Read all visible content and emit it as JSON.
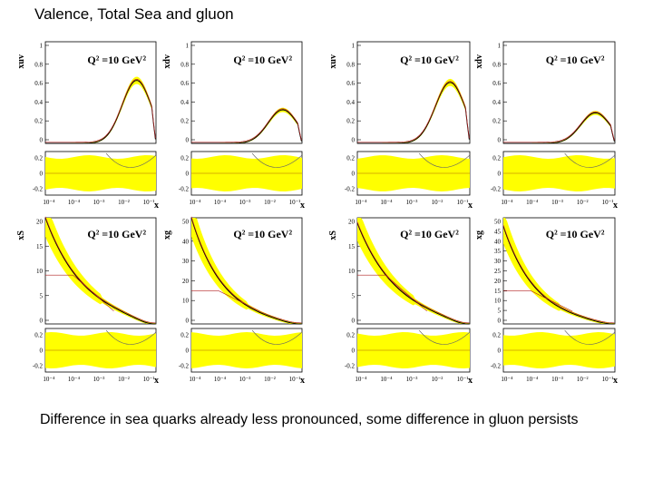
{
  "title": "Valence, Total Sea and gluon",
  "caption": "Difference in sea quarks already less pronounced,  some difference in gluon persists",
  "colors": {
    "band": "#ffff00",
    "central": "#000000",
    "alt": "#b22222",
    "ratio_ref": "#cc9900"
  },
  "chart_data": [
    {
      "type": "line",
      "ylabel": "xuv",
      "annotation": "Q² =10 GeV²",
      "xlabel": "x",
      "y_ticks": [
        "1",
        "0.8",
        "0.6",
        "0.4",
        "0.2",
        "0"
      ],
      "ratio_ticks": [
        "0.2",
        "0",
        "-0.2"
      ],
      "x_ticks": [
        "10⁻⁴",
        "10⁻⁴",
        "10⁻³",
        "10⁻²",
        "10⁻¹"
      ],
      "ylim": [
        0,
        1
      ],
      "peak": {
        "x": 0.2,
        "y": 0.62
      }
    },
    {
      "type": "line",
      "ylabel": "xdv",
      "annotation": "Q² =10 GeV²",
      "xlabel": "x",
      "y_ticks": [
        "1",
        "0.8",
        "0.6",
        "0.4",
        "0.2",
        "0"
      ],
      "ratio_ticks": [
        "0.2",
        "0",
        "-0.2"
      ],
      "x_ticks": [
        "10⁻⁴",
        "10⁻⁴",
        "10⁻³",
        "10⁻²",
        "10⁻¹"
      ],
      "ylim": [
        0,
        1
      ],
      "peak": {
        "x": 0.2,
        "y": 0.33
      }
    },
    {
      "type": "line",
      "ylabel": "xuv",
      "annotation": "Q² =10 GeV²",
      "xlabel": "x",
      "y_ticks": [
        "1",
        "0.8",
        "0.6",
        "0.4",
        "0.2",
        "0"
      ],
      "ratio_ticks": [
        "0.2",
        "0",
        "-0.2"
      ],
      "x_ticks": [
        "10⁻⁴",
        "10⁻⁴",
        "10⁻³",
        "10⁻²",
        "10⁻¹"
      ],
      "ylim": [
        0,
        1
      ],
      "peak": {
        "x": 0.2,
        "y": 0.6
      }
    },
    {
      "type": "line",
      "ylabel": "xdv",
      "annotation": "Q² =10 GeV²",
      "xlabel": "x",
      "y_ticks": [
        "1",
        "0.8",
        "0.6",
        "0.4",
        "0.2",
        "0"
      ],
      "ratio_ticks": [
        "0.2",
        "0",
        "-0.2"
      ],
      "x_ticks": [
        "10⁻⁴",
        "10⁻⁴",
        "10⁻³",
        "10⁻²",
        "10⁻¹"
      ],
      "ylim": [
        0,
        1
      ],
      "peak": {
        "x": 0.2,
        "y": 0.3
      }
    },
    {
      "type": "line",
      "ylabel": "xS",
      "annotation": "Q² =10 GeV²",
      "xlabel": "x",
      "y_ticks": [
        "20",
        "15",
        "10",
        "5",
        "0"
      ],
      "ratio_ticks": [
        "0.2",
        "0",
        "-0.2"
      ],
      "x_ticks": [
        "10⁻⁴",
        "10⁻⁴",
        "10⁻³",
        "10⁻²",
        "10⁻¹"
      ],
      "ylim": [
        0,
        20
      ],
      "start": {
        "x": 0.0001,
        "y": 20
      }
    },
    {
      "type": "line",
      "ylabel": "xg",
      "annotation": "Q² =10 GeV²",
      "xlabel": "x",
      "y_ticks": [
        "50",
        "40",
        "30",
        "20",
        "10",
        "0"
      ],
      "ratio_ticks": [
        "0.2",
        "0",
        "-0.2"
      ],
      "x_ticks": [
        "10⁻⁴",
        "10⁻⁴",
        "10⁻³",
        "10⁻²",
        "10⁻¹"
      ],
      "ylim": [
        0,
        50
      ],
      "start": {
        "x": 0.0001,
        "y": 50
      }
    },
    {
      "type": "line",
      "ylabel": "xS",
      "annotation": "Q² =10 GeV²",
      "xlabel": "x",
      "y_ticks": [
        "20",
        "15",
        "10",
        "5",
        "0"
      ],
      "ratio_ticks": [
        "0.2",
        "0",
        "-0.2"
      ],
      "x_ticks": [
        "10⁻⁴",
        "10⁻⁴",
        "10⁻³",
        "10⁻²",
        "10⁻¹"
      ],
      "ylim": [
        0,
        20
      ],
      "start": {
        "x": 0.0001,
        "y": 19
      }
    },
    {
      "type": "line",
      "ylabel": "xg",
      "annotation": "Q² =10 GeV²",
      "xlabel": "x",
      "y_ticks": [
        "50",
        "45",
        "40",
        "35",
        "30",
        "25",
        "20",
        "15",
        "10",
        "5",
        "0"
      ],
      "ratio_ticks": [
        "0.2",
        "0",
        "-0.2"
      ],
      "x_ticks": [
        "10⁻⁴",
        "10⁻⁴",
        "10⁻³",
        "10⁻²",
        "10⁻¹"
      ],
      "ylim": [
        0,
        50
      ],
      "start": {
        "x": 0.0001,
        "y": 46
      }
    }
  ]
}
